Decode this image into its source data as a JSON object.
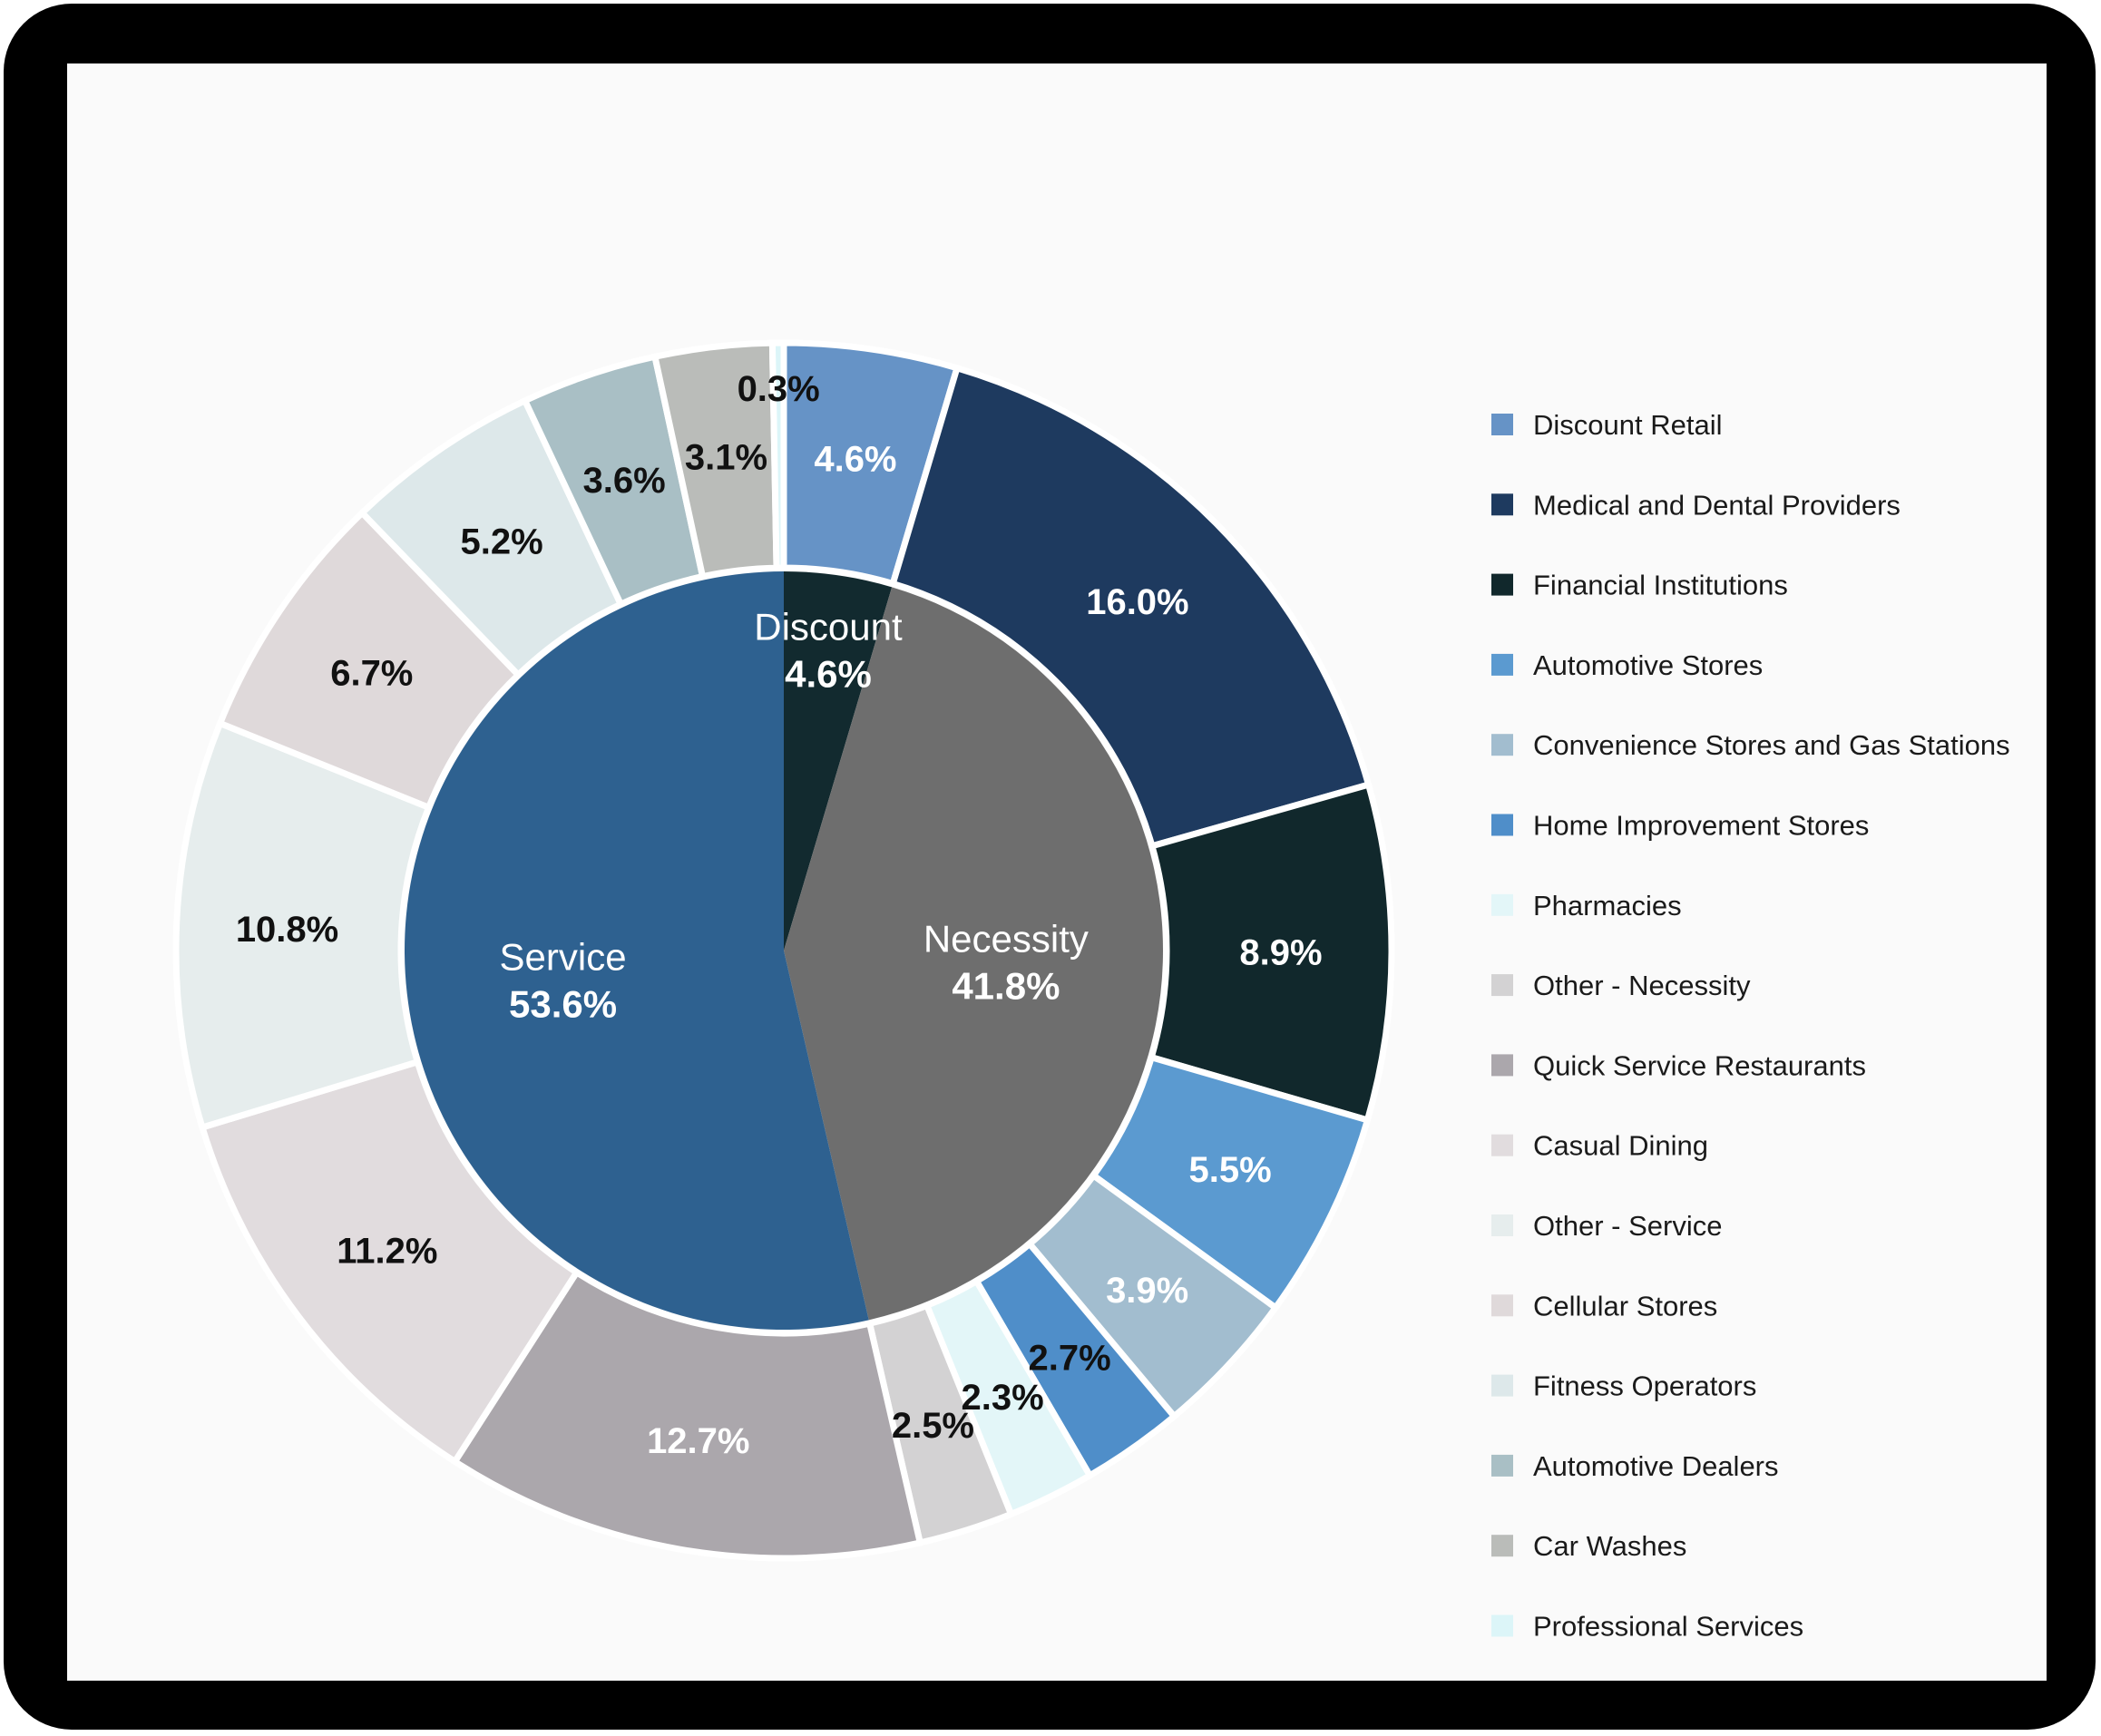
{
  "chart_data": {
    "type": "pie",
    "subtype": "nested-donut",
    "inner": [
      {
        "name": "Discount",
        "value": 4.6,
        "label": "4.6%",
        "color": "#122a2f",
        "label_color": "#ffffff"
      },
      {
        "name": "Necessity",
        "value": 41.8,
        "label": "41.8%",
        "color": "#6e6e6e",
        "label_color": "#ffffff"
      },
      {
        "name": "Service",
        "value": 53.6,
        "label": "53.6%",
        "color": "#2e6190",
        "label_color": "#ffffff"
      }
    ],
    "outer": [
      {
        "name": "Discount Retail",
        "value": 4.6,
        "label": "4.6%",
        "color": "#6693c6",
        "label_color": "#ffffff"
      },
      {
        "name": "Medical and Dental Providers",
        "value": 16.0,
        "label": "16.0%",
        "color": "#1e3a5f",
        "label_color": "#ffffff"
      },
      {
        "name": "Financial Institutions",
        "value": 8.9,
        "label": "8.9%",
        "color": "#11282c",
        "label_color": "#ffffff"
      },
      {
        "name": "Automotive Stores",
        "value": 5.5,
        "label": "5.5%",
        "color": "#5b9ad0",
        "label_color": "#ffffff"
      },
      {
        "name": "Convenience Stores and Gas Stations",
        "value": 3.9,
        "label": "3.9%",
        "color": "#a2bdcf",
        "label_color": "#ffffff"
      },
      {
        "name": "Home Improvement Stores",
        "value": 2.7,
        "label": "2.7%",
        "color": "#4f8ec9",
        "label_color": "#111111"
      },
      {
        "name": "Pharmacies",
        "value": 2.3,
        "label": "2.3%",
        "color": "#e3f6f8",
        "label_color": "#111111"
      },
      {
        "name": "Other - Necessity",
        "value": 2.5,
        "label": "2.5%",
        "color": "#d3d2d3",
        "label_color": "#111111"
      },
      {
        "name": "Quick Service Restaurants",
        "value": 12.7,
        "label": "12.7%",
        "color": "#aba7ac",
        "label_color": "#ffffff"
      },
      {
        "name": "Casual Dining",
        "value": 11.2,
        "label": "11.2%",
        "color": "#e1dcde",
        "label_color": "#111111"
      },
      {
        "name": "Other - Service",
        "value": 10.8,
        "label": "10.8%",
        "color": "#e6eded",
        "label_color": "#111111"
      },
      {
        "name": "Cellular Stores",
        "value": 6.7,
        "label": "6.7%",
        "color": "#dfd9da",
        "label_color": "#111111"
      },
      {
        "name": "Fitness Operators",
        "value": 5.2,
        "label": "5.2%",
        "color": "#dde8ea",
        "label_color": "#111111"
      },
      {
        "name": "Automotive Dealers",
        "value": 3.6,
        "label": "3.6%",
        "color": "#a9bfc5",
        "label_color": "#111111"
      },
      {
        "name": "Car Washes",
        "value": 3.1,
        "label": "3.1%",
        "color": "#babcb9",
        "label_color": "#111111"
      },
      {
        "name": "Professional Services",
        "value": 0.3,
        "label": "0.3%",
        "color": "#dcf5f8",
        "label_color": "#111111"
      }
    ],
    "legend": [
      {
        "name": "Discount Retail",
        "color": "#6693c6"
      },
      {
        "name": "Medical and Dental Providers",
        "color": "#1e3a5f"
      },
      {
        "name": "Financial Institutions",
        "color": "#11282c"
      },
      {
        "name": "Automotive Stores",
        "color": "#5b9ad0"
      },
      {
        "name": "Convenience Stores and Gas Stations",
        "color": "#a2bdcf"
      },
      {
        "name": "Home Improvement Stores",
        "color": "#4f8ec9"
      },
      {
        "name": "Pharmacies",
        "color": "#e3f6f8"
      },
      {
        "name": "Other - Necessity",
        "color": "#d3d2d3"
      },
      {
        "name": "Quick Service Restaurants",
        "color": "#aba7ac"
      },
      {
        "name": "Casual Dining",
        "color": "#e1dcde"
      },
      {
        "name": "Other - Service",
        "color": "#e6eded"
      },
      {
        "name": "Cellular Stores",
        "color": "#dfd9da"
      },
      {
        "name": "Fitness Operators",
        "color": "#dde8ea"
      },
      {
        "name": "Automotive Dealers",
        "color": "#a9bfc5"
      },
      {
        "name": "Car Washes",
        "color": "#babcb9"
      },
      {
        "name": "Professional Services",
        "color": "#dcf5f8"
      }
    ],
    "legend_position": "right",
    "start_angle": "12 o'clock",
    "direction": "clockwise"
  }
}
